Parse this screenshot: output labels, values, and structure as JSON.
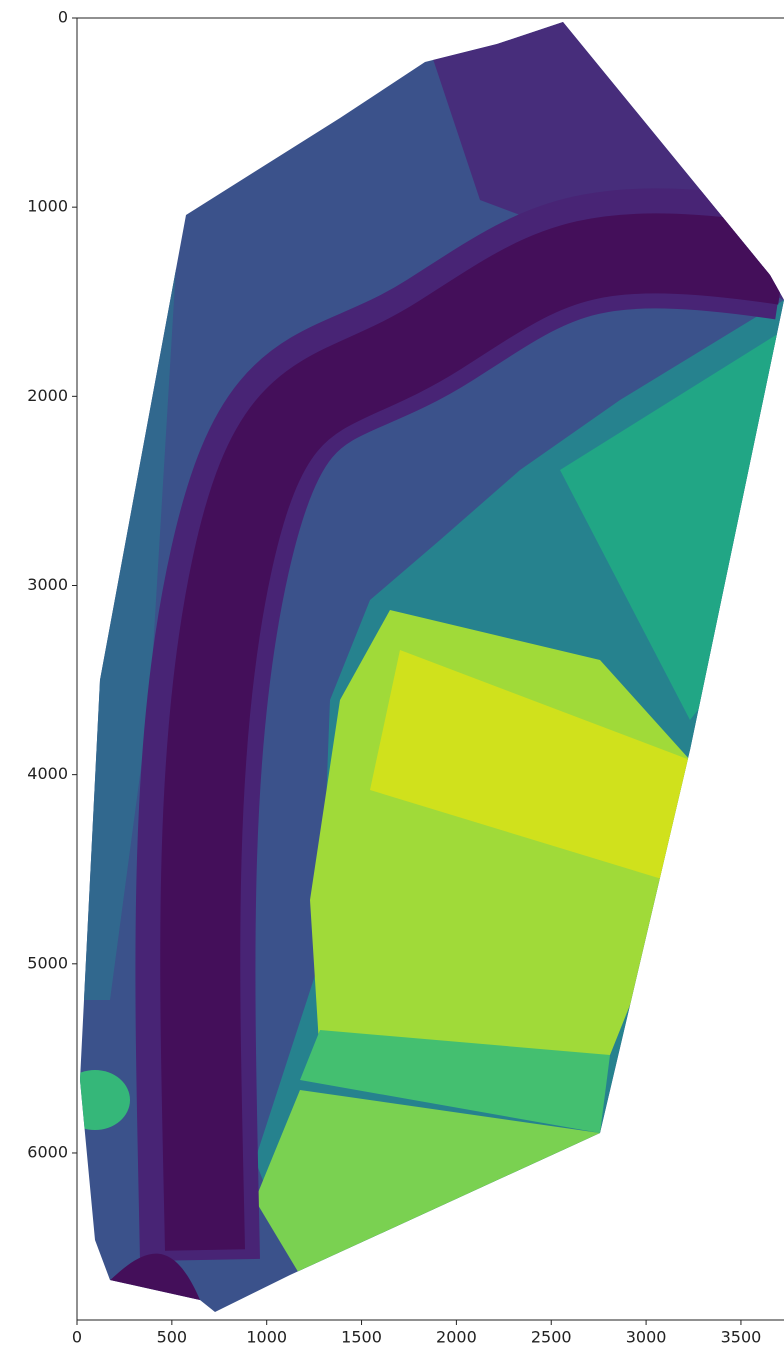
{
  "chart_data": {
    "type": "image",
    "xlim": [
      0,
      3727
    ],
    "ylim": [
      6883,
      0
    ],
    "xticks": [
      0,
      500,
      1000,
      1500,
      2000,
      2500,
      3000,
      3500
    ],
    "yticks": [
      0,
      1000,
      2000,
      3000,
      4000,
      5000,
      6000
    ]
  }
}
